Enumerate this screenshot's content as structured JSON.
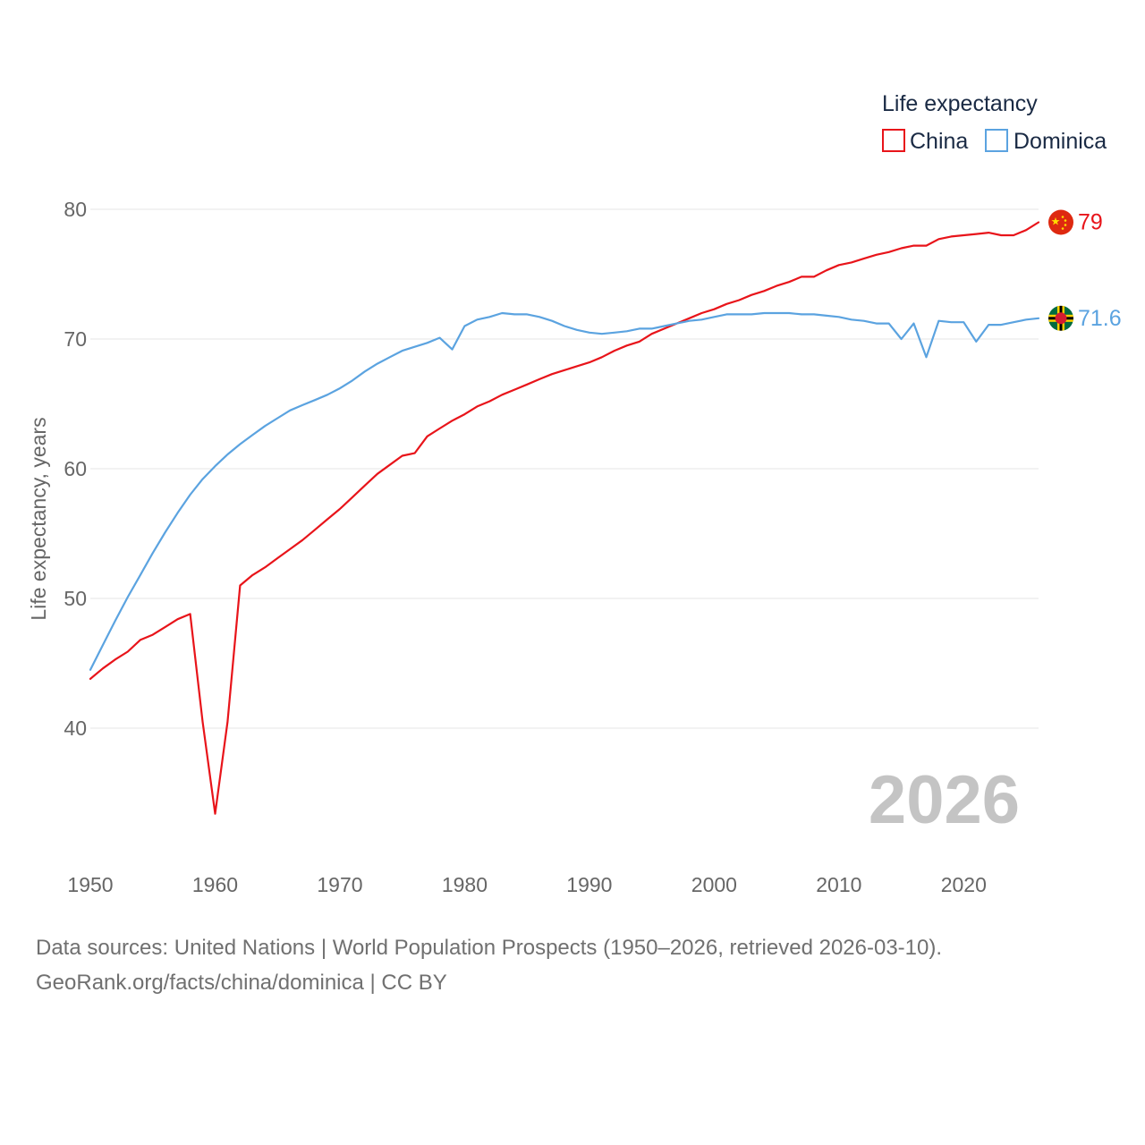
{
  "chart_data": {
    "type": "line",
    "legend_title": "Life expectancy",
    "ylabel": "Life expectancy, years",
    "xlim": [
      1950,
      2026
    ],
    "ylim": [
      33.4,
      83
    ],
    "yticks": [
      40,
      50,
      60,
      70,
      80
    ],
    "xticks": [
      1950,
      1960,
      1970,
      1980,
      1990,
      2000,
      2010,
      2020
    ],
    "year_label": "2026",
    "x": [
      1950,
      1951,
      1952,
      1953,
      1954,
      1955,
      1956,
      1957,
      1958,
      1959,
      1960,
      1961,
      1962,
      1963,
      1964,
      1965,
      1966,
      1967,
      1968,
      1969,
      1970,
      1971,
      1972,
      1973,
      1974,
      1975,
      1976,
      1977,
      1978,
      1979,
      1980,
      1981,
      1982,
      1983,
      1984,
      1985,
      1986,
      1987,
      1988,
      1989,
      1990,
      1991,
      1992,
      1993,
      1994,
      1995,
      1996,
      1997,
      1998,
      1999,
      2000,
      2001,
      2002,
      2003,
      2004,
      2005,
      2006,
      2007,
      2008,
      2009,
      2010,
      2011,
      2012,
      2013,
      2014,
      2015,
      2016,
      2017,
      2018,
      2019,
      2020,
      2021,
      2022,
      2023,
      2024,
      2025,
      2026
    ],
    "series": [
      {
        "name": "China",
        "color": "#e8141a",
        "end_label": "79",
        "flag": "china-flag",
        "values": [
          43.8,
          44.6,
          45.3,
          45.9,
          46.8,
          47.2,
          47.8,
          48.4,
          48.8,
          40.5,
          33.4,
          40.5,
          51.0,
          51.8,
          52.4,
          53.1,
          53.8,
          54.5,
          55.3,
          56.1,
          56.9,
          57.8,
          58.7,
          59.6,
          60.3,
          61.0,
          61.2,
          62.5,
          63.1,
          63.7,
          64.2,
          64.8,
          65.2,
          65.7,
          66.1,
          66.5,
          66.9,
          67.3,
          67.6,
          67.9,
          68.2,
          68.6,
          69.1,
          69.5,
          69.8,
          70.4,
          70.8,
          71.2,
          71.6,
          72.0,
          72.3,
          72.7,
          73.0,
          73.4,
          73.7,
          74.1,
          74.4,
          74.8,
          74.8,
          75.3,
          75.7,
          75.9,
          76.2,
          76.5,
          76.7,
          77.0,
          77.2,
          77.2,
          77.7,
          77.9,
          78.0,
          78.1,
          78.2,
          78.0,
          78.0,
          78.4,
          79.0
        ]
      },
      {
        "name": "Dominica",
        "color": "#5ba3e0",
        "end_label": "71.6",
        "flag": "dominica-flag",
        "values": [
          44.5,
          46.4,
          48.3,
          50.1,
          51.8,
          53.5,
          55.1,
          56.6,
          58.0,
          59.2,
          60.2,
          61.1,
          61.9,
          62.6,
          63.3,
          63.9,
          64.5,
          64.9,
          65.3,
          65.7,
          66.2,
          66.8,
          67.5,
          68.1,
          68.6,
          69.1,
          69.4,
          69.7,
          70.1,
          69.2,
          71.0,
          71.5,
          71.7,
          72.0,
          71.9,
          71.9,
          71.7,
          71.4,
          71.0,
          70.7,
          70.5,
          70.4,
          70.5,
          70.6,
          70.8,
          70.8,
          71.0,
          71.2,
          71.4,
          71.5,
          71.7,
          71.9,
          71.9,
          71.9,
          72.0,
          72.0,
          72.0,
          71.9,
          71.9,
          71.8,
          71.7,
          71.5,
          71.4,
          71.2,
          71.2,
          70.0,
          71.2,
          68.6,
          71.4,
          71.3,
          71.3,
          69.8,
          71.1,
          71.1,
          71.3,
          71.5,
          71.6
        ]
      }
    ]
  },
  "footer": {
    "line1": "Data sources: United Nations | World Population Prospects (1950–2026, retrieved 2026-03-10).",
    "line2": "GeoRank.org/facts/china/dominica | CC BY"
  }
}
